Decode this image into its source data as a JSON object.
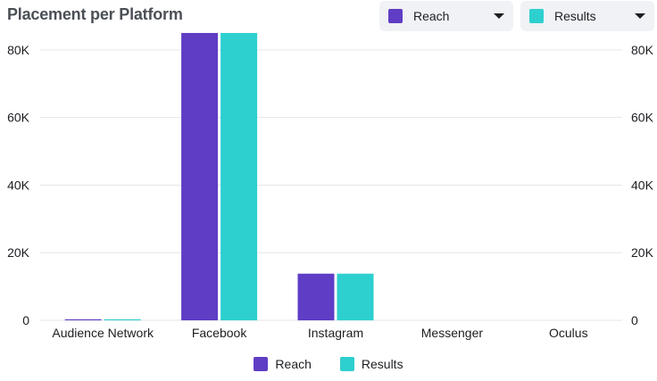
{
  "header": {
    "title": "Placement per Platform"
  },
  "dropdowns": [
    {
      "label": "Reach",
      "color": "#5f3dc4"
    },
    {
      "label": "Results",
      "color": "#2ecfcf"
    }
  ],
  "colors": {
    "reach": "#5f3dc4",
    "results": "#2ecfcf",
    "grid": "#e4e6eb"
  },
  "chart_data": {
    "type": "bar",
    "title": "Placement per Platform",
    "categories": [
      "Audience Network",
      "Facebook",
      "Instagram",
      "Messenger",
      "Oculus"
    ],
    "series": [
      {
        "name": "Reach",
        "values": [
          300,
          85000,
          13800,
          0,
          0
        ]
      },
      {
        "name": "Results",
        "values": [
          300,
          85000,
          13800,
          0,
          0
        ]
      }
    ],
    "ylim": [
      0,
      90000
    ],
    "yticks": [
      "0",
      "20K",
      "40K",
      "60K",
      "80K"
    ],
    "ytick_values": [
      0,
      20000,
      40000,
      60000,
      80000
    ],
    "grid": true,
    "dual_axis": true,
    "legend": "bottom-center"
  }
}
